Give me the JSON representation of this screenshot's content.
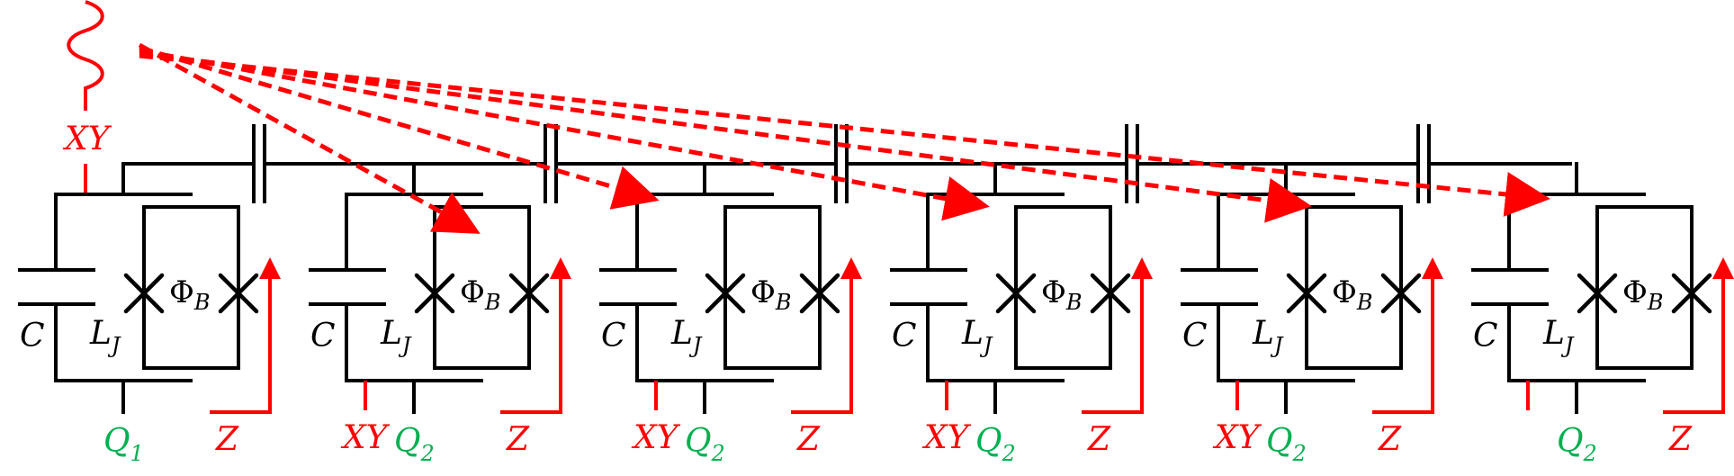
{
  "source_label": "XY",
  "cells": [
    {
      "qubit": "Q",
      "index": "1",
      "xy": ""
    },
    {
      "qubit": "Q",
      "index": "2",
      "xy": "XY"
    },
    {
      "qubit": "Q",
      "index": "2",
      "xy": "XY"
    },
    {
      "qubit": "Q",
      "index": "2",
      "xy": "XY"
    },
    {
      "qubit": "Q",
      "index": "2",
      "xy": "XY"
    },
    {
      "qubit": "Q",
      "index": "2",
      "xy": ""
    }
  ],
  "labels": {
    "capacitor": "C",
    "inductor": "L",
    "inductor_sub": "J",
    "flux": "Φ",
    "flux_sub": "B",
    "z_line": "Z"
  },
  "colors": {
    "circuit": "#000000",
    "control": "#ff0000",
    "qubit": "#00b050"
  }
}
